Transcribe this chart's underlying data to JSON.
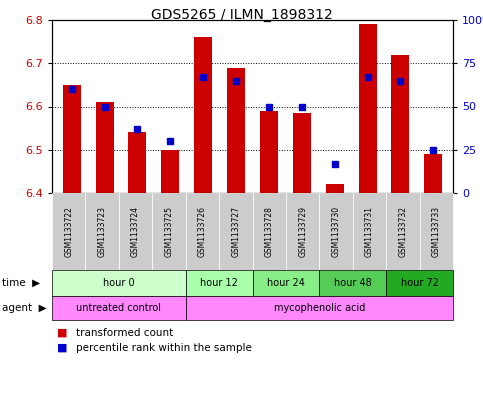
{
  "title": "GDS5265 / ILMN_1898312",
  "samples": [
    "GSM1133722",
    "GSM1133723",
    "GSM1133724",
    "GSM1133725",
    "GSM1133726",
    "GSM1133727",
    "GSM1133728",
    "GSM1133729",
    "GSM1133730",
    "GSM1133731",
    "GSM1133732",
    "GSM1133733"
  ],
  "bar_values": [
    6.65,
    6.61,
    6.54,
    6.5,
    6.76,
    6.69,
    6.59,
    6.585,
    6.42,
    6.79,
    6.72,
    6.49
  ],
  "percentile_values": [
    60,
    50,
    37,
    30,
    67,
    65,
    50,
    50,
    17,
    67,
    65,
    25
  ],
  "bar_bottom": 6.4,
  "ylim_left": [
    6.4,
    6.8
  ],
  "ylim_right": [
    0,
    100
  ],
  "yticks_left": [
    6.4,
    6.5,
    6.6,
    6.7,
    6.8
  ],
  "yticks_right": [
    0,
    25,
    50,
    75,
    100
  ],
  "ytick_labels_right": [
    "0",
    "25",
    "50",
    "75",
    "100%"
  ],
  "bar_color": "#cc0000",
  "dot_color": "#0000cc",
  "time_groups": [
    {
      "label": "hour 0",
      "start": 0,
      "end": 4
    },
    {
      "label": "hour 12",
      "start": 4,
      "end": 6
    },
    {
      "label": "hour 24",
      "start": 6,
      "end": 8
    },
    {
      "label": "hour 48",
      "start": 8,
      "end": 10
    },
    {
      "label": "hour 72",
      "start": 10,
      "end": 12
    }
  ],
  "time_colors": [
    "#ccffcc",
    "#aaffaa",
    "#88ee88",
    "#55cc55",
    "#22aa22"
  ],
  "agent_groups": [
    {
      "label": "untreated control",
      "start": 0,
      "end": 4
    },
    {
      "label": "mycophenolic acid",
      "start": 4,
      "end": 12
    }
  ],
  "agent_color": "#ff88ff",
  "sample_bg_color": "#cccccc",
  "legend_red_label": "transformed count",
  "legend_blue_label": "percentile rank within the sample",
  "time_label": "time",
  "agent_label": "agent"
}
